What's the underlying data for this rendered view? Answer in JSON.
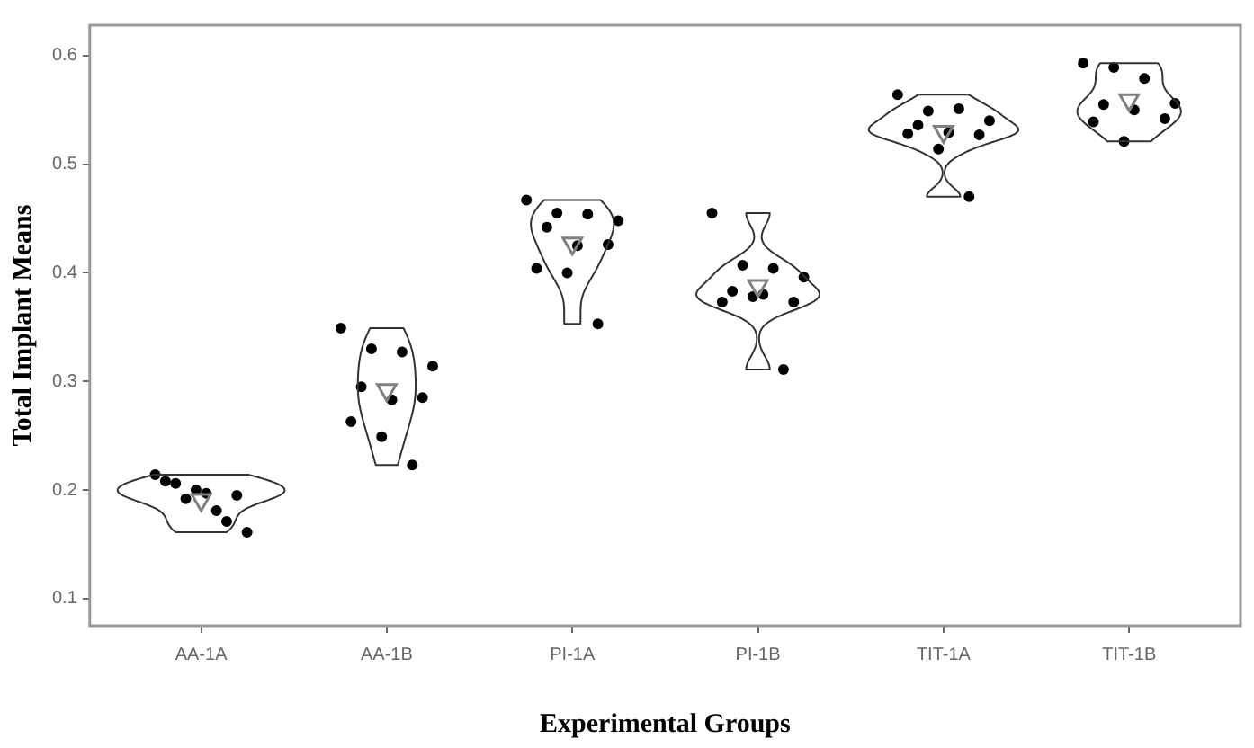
{
  "chart_data": {
    "type": "scatter",
    "xlabel": "Experimental Groups",
    "ylabel": "Total Implant Means",
    "categories": [
      "AA-1A",
      "AA-1B",
      "PI-1A",
      "PI-1B",
      "TIT-1A",
      "TIT-1B"
    ],
    "ylim": [
      0.075,
      0.628
    ],
    "yticks": [
      0.1,
      0.2,
      0.3,
      0.4,
      0.5,
      0.6
    ],
    "grid": false,
    "legend": false,
    "series": [
      {
        "marker": "circle",
        "color": "#000000",
        "x": [
          "AA-1A",
          "AA-1A",
          "AA-1A",
          "AA-1A",
          "AA-1A",
          "AA-1A",
          "AA-1A",
          "AA-1A",
          "AA-1A",
          "AA-1A",
          "AA-1B",
          "AA-1B",
          "AA-1B",
          "AA-1B",
          "AA-1B",
          "AA-1B",
          "AA-1B",
          "AA-1B",
          "AA-1B",
          "AA-1B",
          "PI-1A",
          "PI-1A",
          "PI-1A",
          "PI-1A",
          "PI-1A",
          "PI-1A",
          "PI-1A",
          "PI-1A",
          "PI-1A",
          "PI-1A",
          "PI-1B",
          "PI-1B",
          "PI-1B",
          "PI-1B",
          "PI-1B",
          "PI-1B",
          "PI-1B",
          "PI-1B",
          "PI-1B",
          "PI-1B",
          "TIT-1A",
          "TIT-1A",
          "TIT-1A",
          "TIT-1A",
          "TIT-1A",
          "TIT-1A",
          "TIT-1A",
          "TIT-1A",
          "TIT-1A",
          "TIT-1A",
          "TIT-1B",
          "TIT-1B",
          "TIT-1B",
          "TIT-1B",
          "TIT-1B",
          "TIT-1B",
          "TIT-1B",
          "TIT-1B",
          "TIT-1B"
        ],
        "values": [
          0.214,
          0.192,
          0.181,
          0.161,
          0.206,
          0.197,
          0.195,
          0.208,
          0.2,
          0.171,
          0.349,
          0.33,
          0.327,
          0.314,
          0.295,
          0.283,
          0.285,
          0.263,
          0.249,
          0.223,
          0.467,
          0.455,
          0.454,
          0.448,
          0.442,
          0.425,
          0.426,
          0.404,
          0.4,
          0.353,
          0.455,
          0.407,
          0.404,
          0.396,
          0.383,
          0.38,
          0.373,
          0.373,
          0.378,
          0.311,
          0.564,
          0.549,
          0.551,
          0.54,
          0.536,
          0.529,
          0.527,
          0.528,
          0.514,
          0.47,
          0.593,
          0.589,
          0.579,
          0.556,
          0.555,
          0.55,
          0.542,
          0.539,
          0.521
        ]
      },
      {
        "marker": "triangle",
        "color": "#808080",
        "x": [
          "AA-1A",
          "AA-1B",
          "PI-1A",
          "PI-1B",
          "TIT-1A",
          "TIT-1B"
        ],
        "values": [
          0.191,
          0.292,
          0.427,
          0.388,
          0.53,
          0.559
        ]
      }
    ]
  }
}
